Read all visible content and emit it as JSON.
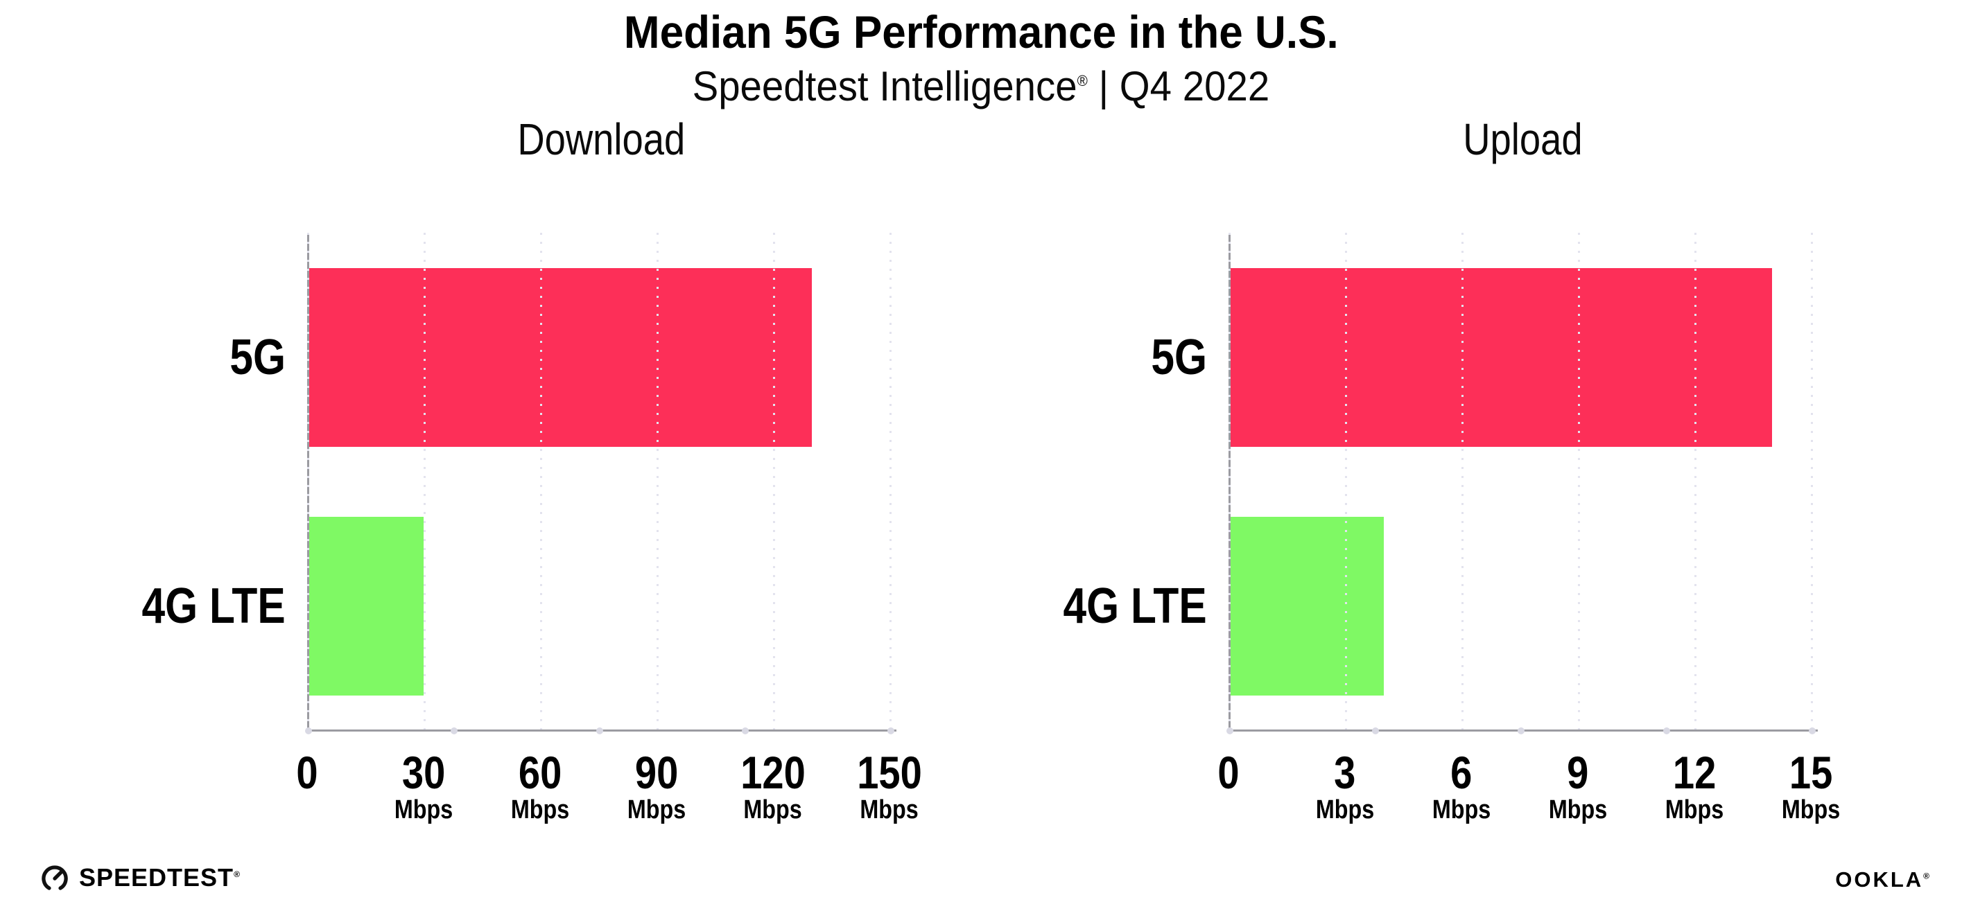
{
  "title": "Median 5G Performance in the U.S.",
  "subtitle": {
    "brand": "Speedtest Intelligence",
    "reg_mark": "®",
    "rest": " | Q4 2022"
  },
  "colors": {
    "bar_5g": "#FD2F58",
    "bar_4g_lte": "#7FF964",
    "axis": "#9b9ba1",
    "gridline": "#e3e3ee",
    "axis_dot": "#d9d9e4",
    "text": "#000000"
  },
  "chart_data": [
    {
      "type": "bar",
      "orientation": "horizontal",
      "title": "Download",
      "categories": [
        "5G",
        "4G LTE"
      ],
      "values": [
        130,
        30
      ],
      "bar_colors": [
        "#FD2F58",
        "#7FF964"
      ],
      "unit": "Mbps",
      "xlim": [
        0,
        150
      ],
      "xticks": [
        0,
        30,
        60,
        90,
        120,
        150
      ],
      "grid": "dotted-vertical",
      "legend": "none"
    },
    {
      "type": "bar",
      "orientation": "horizontal",
      "title": "Upload",
      "categories": [
        "5G",
        "4G LTE"
      ],
      "values": [
        14,
        4
      ],
      "bar_colors": [
        "#FD2F58",
        "#7FF964"
      ],
      "unit": "Mbps",
      "xlim": [
        0,
        15
      ],
      "xticks": [
        0,
        3,
        6,
        9,
        12,
        15
      ],
      "grid": "dotted-vertical",
      "legend": "none"
    }
  ],
  "footer": {
    "speedtest_label": "SPEEDTEST",
    "speedtest_mark": "®",
    "ookla_label": "OOKLA",
    "ookla_mark": "®"
  }
}
